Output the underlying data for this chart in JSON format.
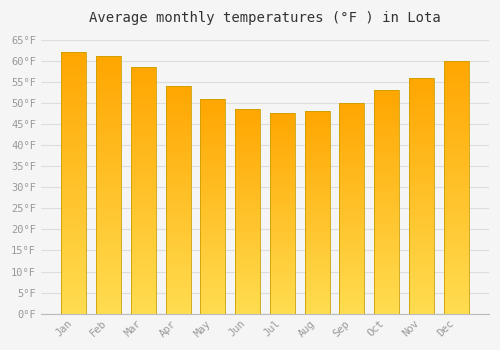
{
  "months": [
    "Jan",
    "Feb",
    "Mar",
    "Apr",
    "May",
    "Jun",
    "Jul",
    "Aug",
    "Sep",
    "Oct",
    "Nov",
    "Dec"
  ],
  "values": [
    62.0,
    61.0,
    58.5,
    54.0,
    51.0,
    48.5,
    47.5,
    48.0,
    50.0,
    53.0,
    56.0,
    60.0
  ],
  "bar_color_top": "#FFA500",
  "bar_color_bottom": "#FFD966",
  "bar_edge_color": "#CCA000",
  "title": "Average monthly temperatures (°F ) in Lota",
  "ytick_min": 0,
  "ytick_max": 65,
  "ytick_step": 5,
  "background_color": "#F5F5F5",
  "plot_bg_color": "#F5F5F5",
  "grid_color": "#DDDDDD",
  "title_fontsize": 10,
  "tick_fontsize": 7.5,
  "tick_color": "#999999",
  "title_color": "#333333"
}
